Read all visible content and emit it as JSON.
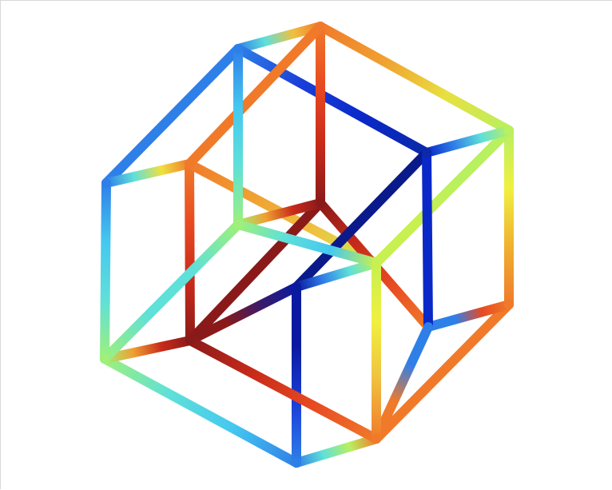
{
  "figure": {
    "subject": "tesseract-wireframe",
    "colormap": "jet",
    "background": "#ffffff",
    "frame_line_color": "#d9d9d9",
    "vertices": [
      {
        "id": "v0",
        "label": "outer-top"
      },
      {
        "id": "v1",
        "label": "outer-upper-left"
      },
      {
        "id": "v2",
        "label": "outer-left"
      },
      {
        "id": "v3",
        "label": "outer-lower-left"
      },
      {
        "id": "v4",
        "label": "outer-bottom"
      },
      {
        "id": "v5",
        "label": "outer-lower-right"
      },
      {
        "id": "v6",
        "label": "outer-right"
      },
      {
        "id": "v7",
        "label": "outer-upper-right"
      },
      {
        "id": "v8",
        "label": "inner-upper-left"
      },
      {
        "id": "v9",
        "label": "inner-back-top"
      },
      {
        "id": "v10",
        "label": "inner-upper-right"
      },
      {
        "id": "v11",
        "label": "inner-center"
      },
      {
        "id": "v12",
        "label": "inner-lower-left"
      },
      {
        "id": "v13",
        "label": "inner-mid-left"
      },
      {
        "id": "v14",
        "label": "inner-mid-right"
      },
      {
        "id": "v15",
        "label": "inner-lower-right"
      }
    ],
    "edges": [
      {
        "from": "v1",
        "to": "v0",
        "colors": [
          "#2f7fe8",
          "#5fe0d8",
          "#f0c040",
          "#f07a2a"
        ]
      },
      {
        "from": "v0",
        "to": "v7",
        "colors": [
          "#f07a2a",
          "#f0a030",
          "#e8e040",
          "#b8f060"
        ]
      },
      {
        "from": "v7",
        "to": "v6",
        "colors": [
          "#b8f060",
          "#f0f040",
          "#f0b030",
          "#f07a2a"
        ]
      },
      {
        "from": "v6",
        "to": "v5",
        "colors": [
          "#f07a2a",
          "#f07a2a",
          "#f07a2a",
          "#f07a2a"
        ]
      },
      {
        "from": "v5",
        "to": "v4",
        "colors": [
          "#f07a2a",
          "#b8f060",
          "#5fe0d8",
          "#2f7fe8"
        ]
      },
      {
        "from": "v4",
        "to": "v3",
        "colors": [
          "#2f7fe8",
          "#45c8f0",
          "#5fe0d8",
          "#9ef07a"
        ]
      },
      {
        "from": "v3",
        "to": "v2",
        "colors": [
          "#9ef07a",
          "#5fe0d8",
          "#45c8f0",
          "#2f7fe8"
        ]
      },
      {
        "from": "v2",
        "to": "v1",
        "colors": [
          "#2f7fe8",
          "#2f7fe8",
          "#2f7fe8",
          "#2f7fe8"
        ]
      },
      {
        "from": "v1",
        "to": "v10",
        "colors": [
          "#2f7fe8",
          "#1a3fd8",
          "#0a28c8",
          "#0a2aa8"
        ]
      },
      {
        "from": "v0",
        "to": "v9",
        "colors": [
          "#f07a2a",
          "#e84a22",
          "#c82a1a",
          "#8a1a1a"
        ]
      },
      {
        "from": "v7",
        "to": "v14",
        "colors": [
          "#b8f060",
          "#b8f060",
          "#c8f050",
          "#c8f050"
        ]
      },
      {
        "from": "v6",
        "to": "v15",
        "colors": [
          "#f07a2a",
          "#e84a22",
          "#2f7fe8",
          "#2f7fe8"
        ]
      },
      {
        "from": "v5",
        "to": "v15",
        "colors": [
          "#f07a2a",
          "#f07a2a",
          "#2f7fe8",
          "#2f7fe8"
        ]
      },
      {
        "from": "v4",
        "to": "v11",
        "colors": [
          "#2f7fe8",
          "#1a3fd8",
          "#0a28b8",
          "#0a1aa0"
        ]
      },
      {
        "from": "v3",
        "to": "v12",
        "colors": [
          "#9ef07a",
          "#f0a030",
          "#c82a1a",
          "#8a1a1a"
        ]
      },
      {
        "from": "v2",
        "to": "v8",
        "colors": [
          "#2f7fe8",
          "#5fe0d8",
          "#f0e040",
          "#f07a2a"
        ]
      },
      {
        "from": "v8",
        "to": "v12",
        "colors": [
          "#f07a2a",
          "#e84a22",
          "#c82a1a",
          "#8a1a1a"
        ]
      },
      {
        "from": "v8",
        "to": "v0",
        "colors": [
          "#f07a2a",
          "#f07a2a",
          "#f07a2a",
          "#f07a2a"
        ]
      },
      {
        "from": "v8",
        "to": "v14",
        "colors": [
          "#f07a2a",
          "#f0a030",
          "#f0c040",
          "#c8f050"
        ]
      },
      {
        "from": "v9",
        "to": "v12",
        "colors": [
          "#8a1a1a",
          "#8a1a1a",
          "#8a1a1a",
          "#8a1a1a"
        ]
      },
      {
        "from": "v9",
        "to": "v13",
        "colors": [
          "#8a1a1a",
          "#c82a1a",
          "#f0a030",
          "#9ef07a"
        ]
      },
      {
        "from": "v9",
        "to": "v15",
        "colors": [
          "#8a1a1a",
          "#c82a1a",
          "#e84a22",
          "#f07a2a"
        ]
      },
      {
        "from": "v10",
        "to": "v11",
        "colors": [
          "#0a1a8a",
          "#0a1a8a",
          "#0a1a8a",
          "#0a1a8a"
        ]
      },
      {
        "from": "v10",
        "to": "v7",
        "colors": [
          "#0a28c8",
          "#2f7fe8",
          "#5fe0d8",
          "#b8f060"
        ]
      },
      {
        "from": "v10",
        "to": "v15",
        "colors": [
          "#0a28c8",
          "#0a28c8",
          "#0a28c8",
          "#0a28c8"
        ]
      },
      {
        "from": "v11",
        "to": "v14",
        "colors": [
          "#0a1aa0",
          "#2f7fe8",
          "#5fe0d8",
          "#b8f060"
        ]
      },
      {
        "from": "v11",
        "to": "v12",
        "colors": [
          "#0a1aa0",
          "#3a1a6a",
          "#8a1a1a",
          "#8a1a1a"
        ]
      },
      {
        "from": "v11",
        "to": "v4",
        "colors": [
          "#0a1aa0",
          "#0a1aa0",
          "#1a3fd8",
          "#2f7fe8"
        ]
      },
      {
        "from": "v13",
        "to": "v1",
        "colors": [
          "#9ef07a",
          "#5fe0d8",
          "#45c8f0",
          "#2f7fe8"
        ]
      },
      {
        "from": "v13",
        "to": "v3",
        "colors": [
          "#9ef07a",
          "#5fe0d8",
          "#5fe0d8",
          "#9ef07a"
        ]
      },
      {
        "from": "v13",
        "to": "v14",
        "colors": [
          "#9ef07a",
          "#5fe0d8",
          "#45c8f0",
          "#c8f050"
        ]
      },
      {
        "from": "v12",
        "to": "v5",
        "colors": [
          "#8a1a1a",
          "#c82a1a",
          "#e84a22",
          "#f07a2a"
        ]
      },
      {
        "from": "v14",
        "to": "v5",
        "colors": [
          "#c8f050",
          "#f0f040",
          "#f0c040",
          "#f07a2a"
        ]
      }
    ]
  }
}
